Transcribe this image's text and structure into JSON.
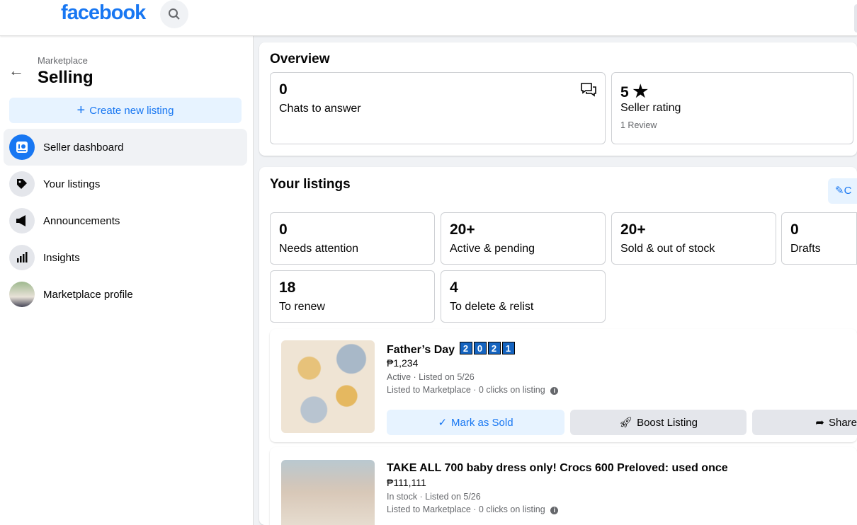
{
  "header": {
    "logo": "facebook",
    "search_icon": "search-icon"
  },
  "sidebar": {
    "parent": "Marketplace",
    "title": "Selling",
    "create_label": "Create new listing",
    "items": [
      {
        "label": "Seller dashboard",
        "icon": "dashboard-icon",
        "active": true
      },
      {
        "label": "Your listings",
        "icon": "tag-icon"
      },
      {
        "label": "Announcements",
        "icon": "megaphone-icon"
      },
      {
        "label": "Insights",
        "icon": "bar-chart-icon"
      },
      {
        "label": "Marketplace profile",
        "icon": "avatar"
      }
    ]
  },
  "overview": {
    "title": "Overview",
    "chats": {
      "value": "0",
      "label": "Chats to answer"
    },
    "rating": {
      "value": "5",
      "label": "Seller rating",
      "sub": "1 Review"
    }
  },
  "listings": {
    "title": "Your listings",
    "edit_label": "C",
    "stats": [
      {
        "value": "0",
        "label": "Needs attention"
      },
      {
        "value": "20+",
        "label": "Active & pending"
      },
      {
        "value": "20+",
        "label": "Sold & out of stock"
      },
      {
        "value": "0",
        "label": "Drafts"
      },
      {
        "value": "18",
        "label": "To renew"
      },
      {
        "value": "4",
        "label": "To delete & relist"
      }
    ],
    "items": [
      {
        "title": "Father’s Day",
        "title_boxes": [
          "2",
          "0",
          "2",
          "1"
        ],
        "price": "₱1,234",
        "status": "Active · Listed on 5/26",
        "reach": "Listed to Marketplace · 0 clicks on listing"
      },
      {
        "title": "TAKE ALL 700 baby dress only! Crocs 600 Preloved: used once",
        "price": "₱111,111",
        "status": "In stock · Listed on 5/26",
        "reach": "Listed to Marketplace · 0 clicks on listing"
      }
    ],
    "actions": {
      "sold": "Mark as Sold",
      "boost": "Boost Listing",
      "share": "Share"
    }
  },
  "colors": {
    "brand": "#1877f2",
    "bg": "#f0f2f5",
    "light_blue": "#e7f3ff"
  }
}
